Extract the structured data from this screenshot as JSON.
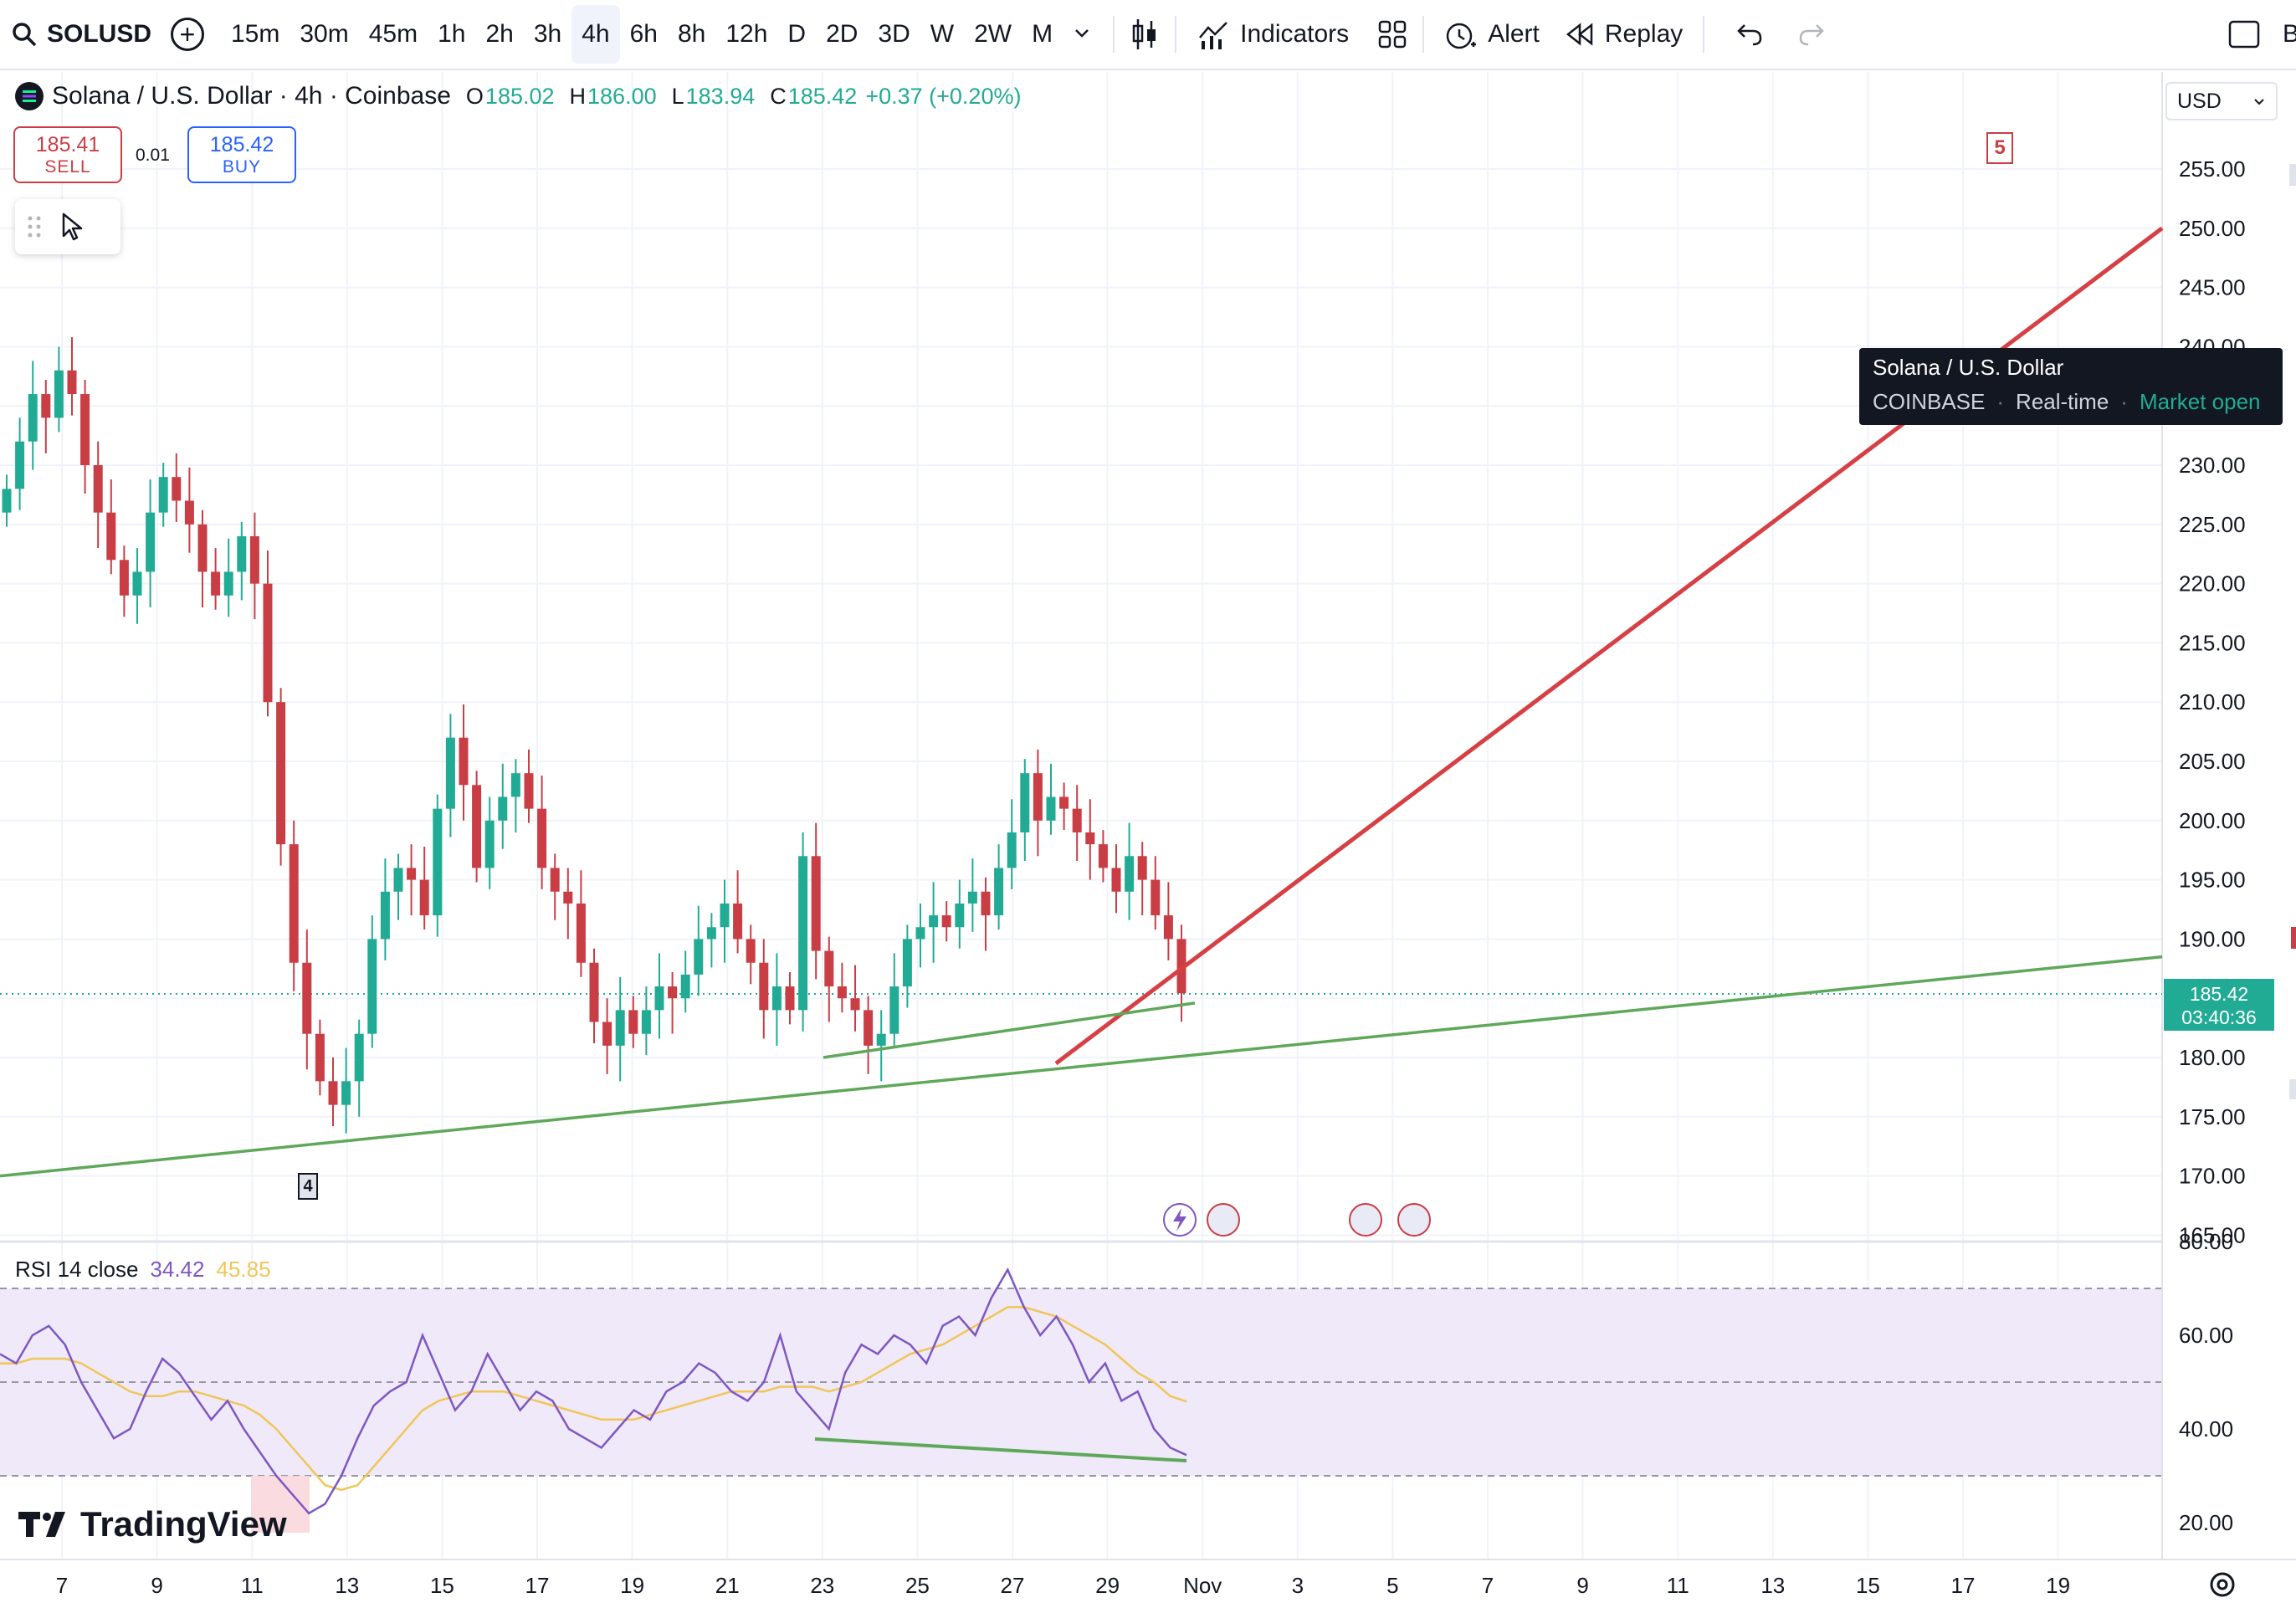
{
  "toolbar": {
    "symbol": "SOLUSD",
    "intervals": [
      "15m",
      "30m",
      "45m",
      "1h",
      "2h",
      "3h",
      "4h",
      "6h",
      "8h",
      "12h",
      "D",
      "2D",
      "3D",
      "W",
      "2W",
      "M"
    ],
    "active_interval": "4h",
    "indicators_label": "Indicators",
    "alert_label": "Alert",
    "replay_label": "Replay",
    "edge_label": "B"
  },
  "legend": {
    "title": "Solana / U.S. Dollar · 4h · Coinbase",
    "o_label": "O",
    "o_value": "185.02",
    "h_label": "H",
    "h_value": "186.00",
    "l_label": "L",
    "l_value": "183.94",
    "c_label": "C",
    "c_value": "185.42",
    "change": "+0.37 (+0.20%)"
  },
  "trade": {
    "sell_price": "185.41",
    "sell_label": "SELL",
    "spread": "0.01",
    "buy_price": "185.42",
    "buy_label": "BUY"
  },
  "currency": "USD",
  "tooltip": {
    "title": "Solana / U.S. Dollar",
    "exchange": "COINBASE",
    "feed": "Real-time",
    "status": "Market open"
  },
  "price_tag": {
    "price": "185.42",
    "countdown": "03:40:36"
  },
  "markers": {
    "top": "5",
    "bottom": "4"
  },
  "rsi": {
    "label": "RSI 14 close",
    "value": "34.42",
    "ma_value": "45.85"
  },
  "logo_text": "TradingView",
  "colors": {
    "up": "#22ab94",
    "down": "#c93e45",
    "trend_red": "#d64045",
    "trend_green": "#5fa85a",
    "rsi": "#7e57c2",
    "rsi_ma": "#f0c659",
    "rsi_band": "#efe9f9"
  },
  "chart_data": {
    "type": "candlestick",
    "price_ticks": [
      "255.00",
      "250.00",
      "245.00",
      "240.00",
      "230.00",
      "225.00",
      "220.00",
      "215.00",
      "210.00",
      "205.00",
      "200.00",
      "195.00",
      "190.00",
      "180.00",
      "175.00",
      "170.00",
      "165.00"
    ],
    "rsi_ticks": [
      "80.00",
      "60.00",
      "40.00",
      "20.00"
    ],
    "x_ticks": [
      "7",
      "9",
      "11",
      "13",
      "15",
      "17",
      "19",
      "21",
      "23",
      "25",
      "27",
      "29",
      "Nov",
      "3",
      "5",
      "7",
      "9",
      "11",
      "13",
      "15",
      "17",
      "19"
    ],
    "ylim": [
      165,
      258
    ],
    "rsi_ylim": [
      17,
      82
    ],
    "rsi_bands": [
      70,
      50,
      30
    ],
    "last_price": 185.42,
    "closes": [
      228,
      232,
      236,
      234,
      238,
      236,
      230,
      226,
      222,
      219,
      221,
      226,
      229,
      227,
      225,
      221,
      219,
      221,
      224,
      220,
      210,
      198,
      188,
      182,
      178,
      176,
      178,
      182,
      190,
      194,
      196,
      195,
      192,
      201,
      207,
      203,
      196,
      200,
      202,
      204,
      201,
      196,
      194,
      193,
      188,
      183,
      181,
      184,
      182,
      184,
      186,
      185,
      187,
      190,
      191,
      193,
      190,
      188,
      184,
      186,
      184,
      197,
      189,
      186,
      185,
      184,
      181,
      182,
      186,
      190,
      191,
      192,
      191,
      193,
      194,
      192,
      196,
      199,
      204,
      200,
      202,
      201,
      199,
      198,
      196,
      194,
      197,
      195,
      192,
      190,
      185.42
    ],
    "rsi_values": [
      56,
      54,
      60,
      62,
      58,
      50,
      44,
      38,
      40,
      48,
      55,
      52,
      47,
      42,
      46,
      40,
      35,
      30,
      26,
      22,
      24,
      30,
      38,
      45,
      48,
      50,
      60,
      52,
      44,
      48,
      56,
      50,
      44,
      48,
      46,
      40,
      38,
      36,
      40,
      44,
      42,
      48,
      50,
      54,
      52,
      48,
      46,
      50,
      60,
      48,
      44,
      40,
      52,
      58,
      56,
      60,
      58,
      54,
      62,
      64,
      60,
      68,
      74,
      66,
      60,
      64,
      58,
      50,
      54,
      46,
      48,
      40,
      36,
      34.42
    ],
    "rsi_ma_values": [
      54,
      54,
      55,
      55,
      55,
      54,
      52,
      50,
      48,
      47,
      47,
      48,
      48,
      47,
      46,
      45,
      43,
      40,
      36,
      32,
      28,
      27,
      28,
      32,
      36,
      40,
      44,
      46,
      47,
      48,
      48,
      48,
      47,
      46,
      45,
      44,
      43,
      42,
      42,
      42,
      43,
      44,
      45,
      46,
      47,
      48,
      48,
      48,
      49,
      49,
      49,
      48,
      49,
      50,
      52,
      54,
      56,
      57,
      58,
      60,
      62,
      64,
      66,
      66,
      65,
      64,
      62,
      60,
      58,
      55,
      52,
      50,
      47,
      45.85
    ],
    "trendlines": [
      {
        "color": "red",
        "from": [
          "Oct 28",
          179.5
        ],
        "to": [
          "Nov 20",
          250
        ]
      },
      {
        "color": "green",
        "from": [
          "Oct 5",
          170
        ],
        "to": [
          "Nov 20",
          188.5
        ]
      },
      {
        "color": "green",
        "from": [
          "Oct 23",
          180
        ],
        "to": [
          "Oct 31",
          184.5
        ]
      }
    ]
  }
}
